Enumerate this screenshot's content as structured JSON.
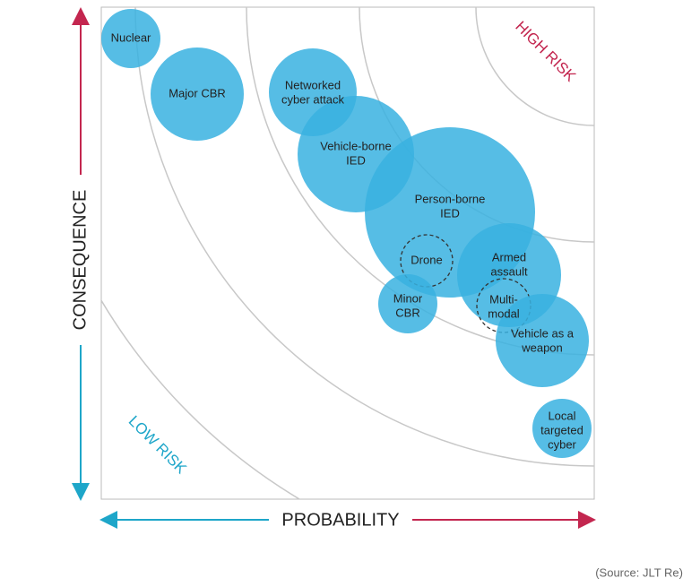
{
  "axes": {
    "y_label": "CONSEQUENCE",
    "x_label": "PROBABILITY"
  },
  "zones": {
    "high": "HIGH RISK",
    "low": "LOW RISK"
  },
  "nodes": [
    {
      "lines": [
        "Nuclear"
      ]
    },
    {
      "lines": [
        "Major CBR"
      ]
    },
    {
      "lines": [
        "Networked",
        "cyber attack"
      ]
    },
    {
      "lines": [
        "Vehicle-borne",
        "IED"
      ]
    },
    {
      "lines": [
        "Person-borne",
        "IED"
      ]
    },
    {
      "lines": [
        "Drone"
      ]
    },
    {
      "lines": [
        "Armed",
        "assault"
      ]
    },
    {
      "lines": [
        "Multi-",
        "modal"
      ]
    },
    {
      "lines": [
        "Minor",
        "CBR"
      ]
    },
    {
      "lines": [
        "Vehicle as a",
        "weapon"
      ]
    },
    {
      "lines": [
        "Local",
        "targeted",
        "cyber"
      ]
    }
  ],
  "source": "(Source: JLT Re)"
}
